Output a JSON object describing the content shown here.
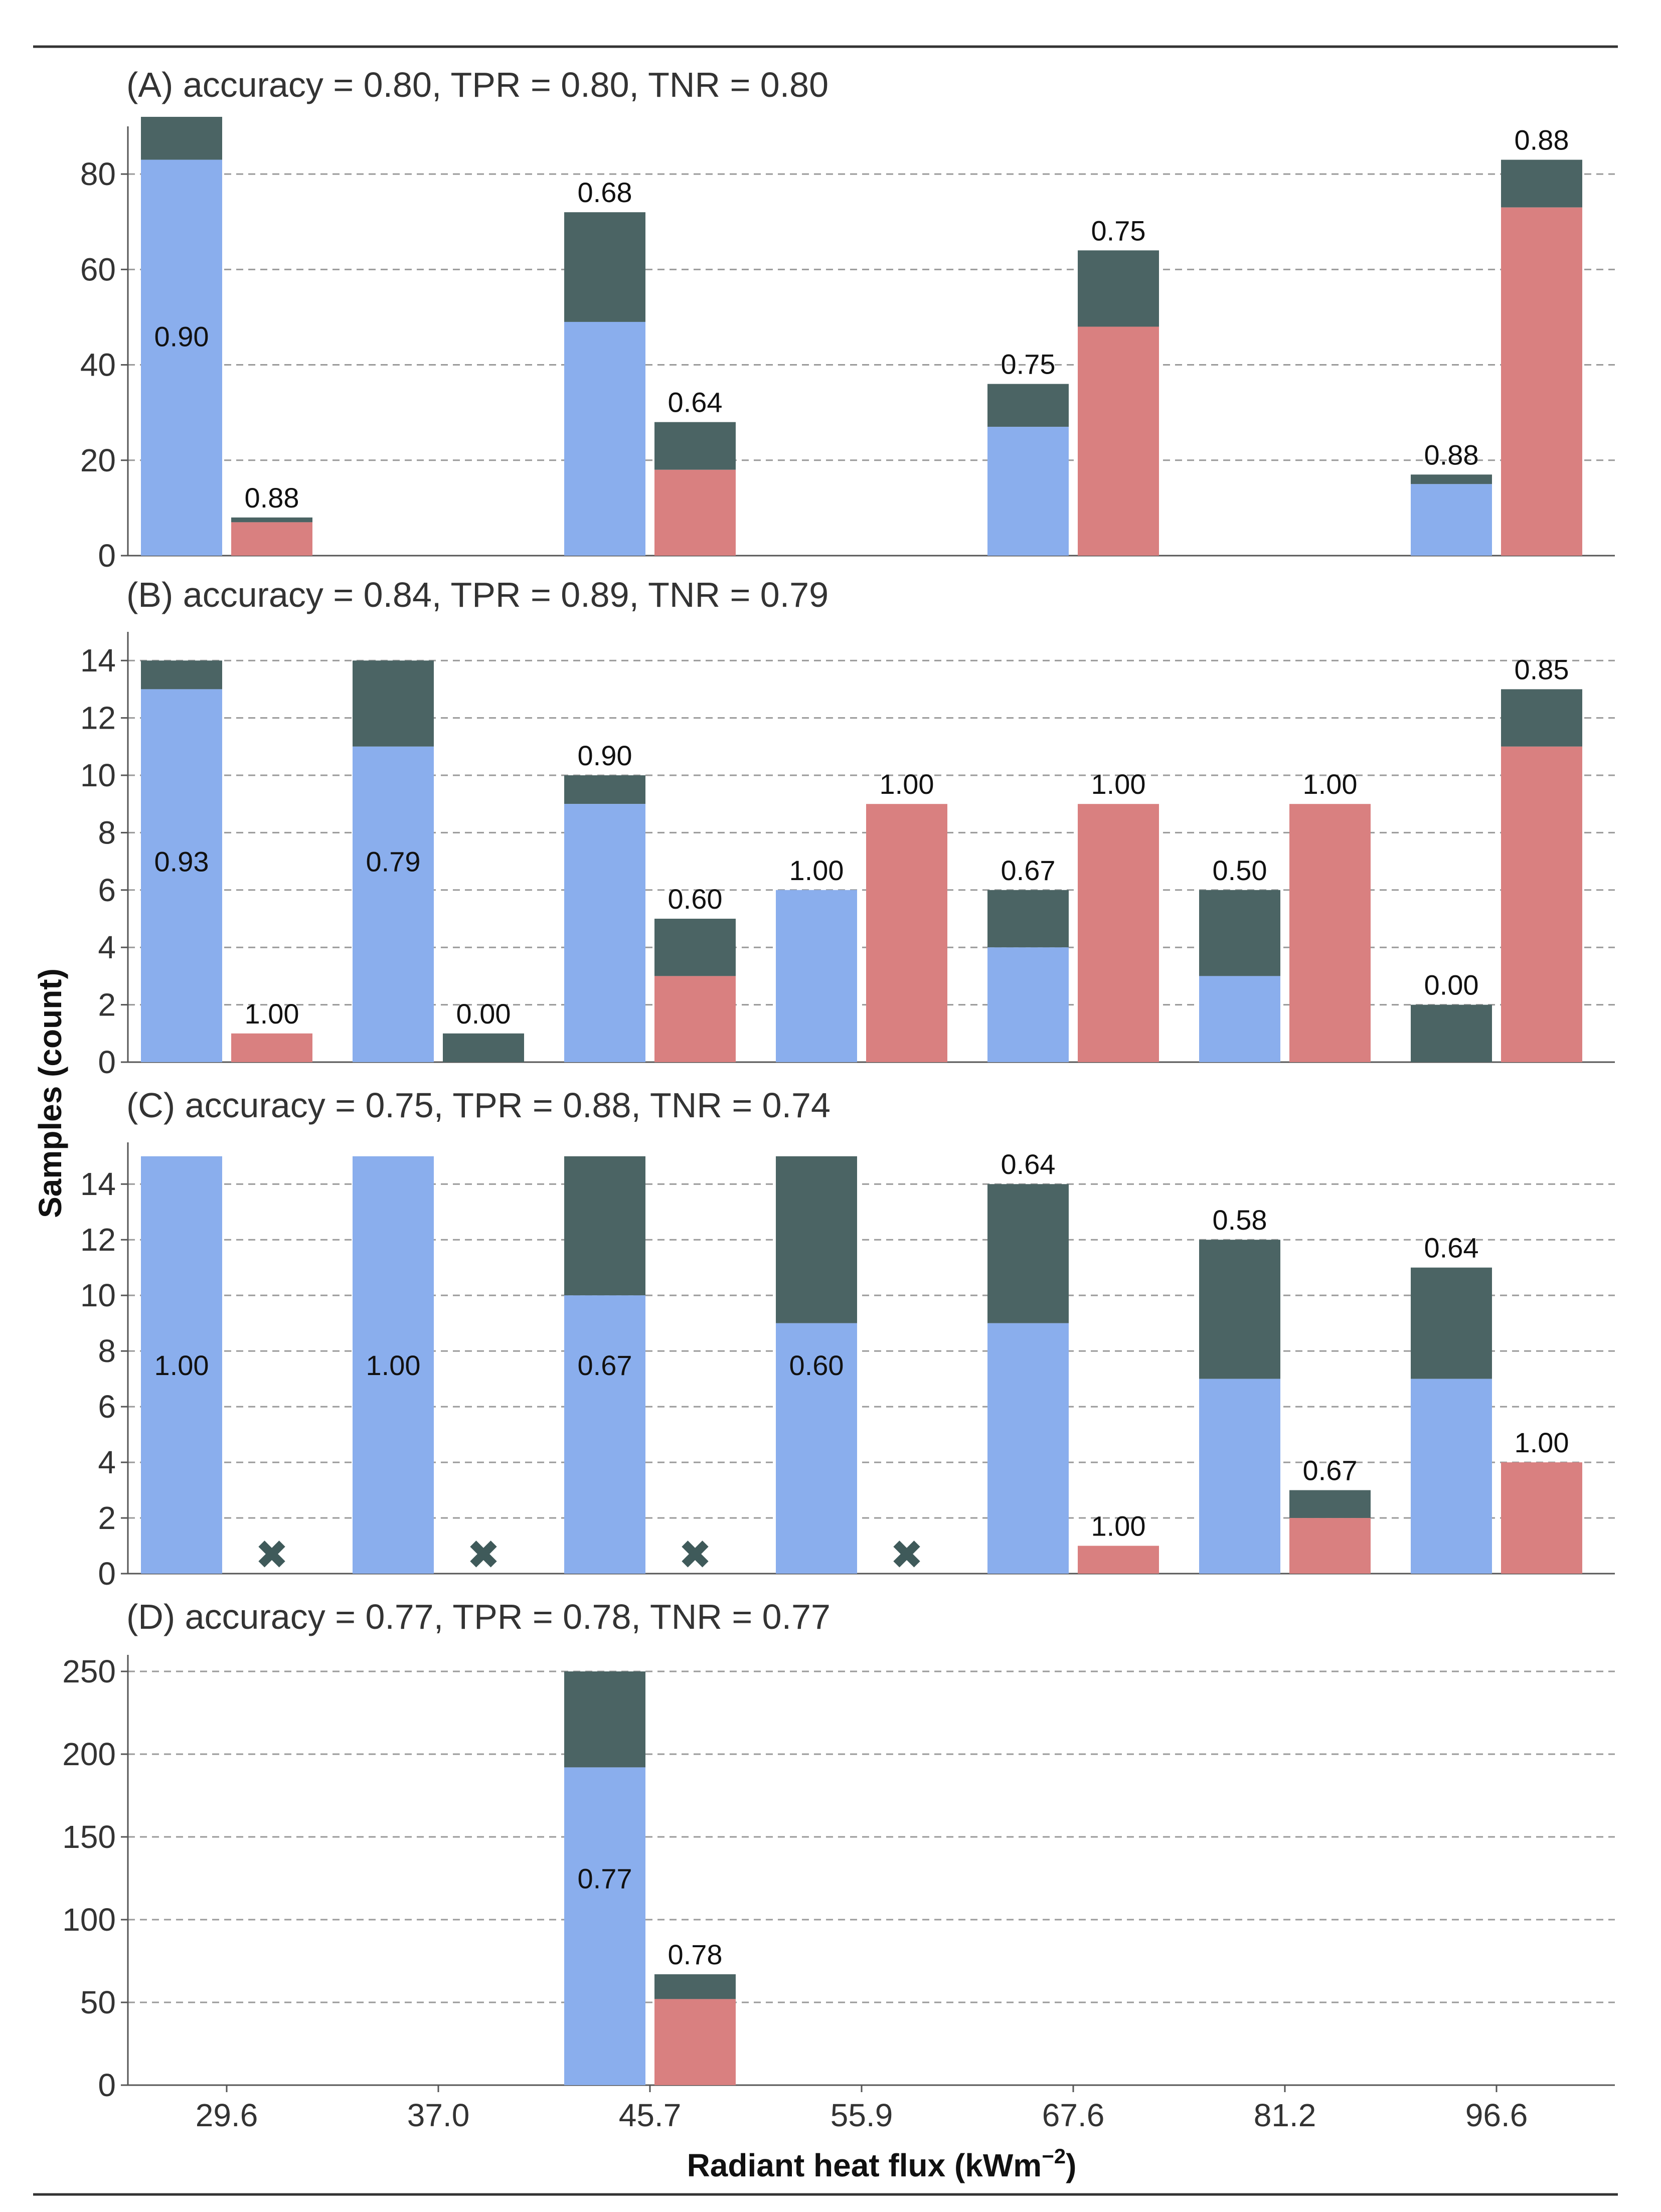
{
  "chart_data": {
    "type": "bar",
    "stacked_grouped": true,
    "colors": {
      "negative": "#8aaeed",
      "positive": "#d98080",
      "misclassified": "#4b6464",
      "marker": "#3f5a5a"
    },
    "ylabel": "Samples (count)",
    "xlabel": "Radiant heat flux (kWm",
    "xlabel_sup": "−2",
    "xlabel_close": ")",
    "categories": [
      "29.6",
      "37.0",
      "45.7",
      "55.9",
      "67.6",
      "81.2",
      "96.6"
    ],
    "missing_marker": "✖",
    "panels": [
      {
        "title": "(A) accuracy = 0.80, TPR = 0.80, TNR = 0.80",
        "ylim": [
          0,
          90
        ],
        "yticks": [
          0,
          20,
          40,
          60,
          80
        ],
        "bars": [
          {
            "category": "29.6",
            "class": "negative",
            "correct": 83,
            "total": 92,
            "label": "0.90",
            "label_pos": "inside"
          },
          {
            "category": "29.6",
            "class": "positive",
            "correct": 7,
            "total": 8,
            "label": "0.88",
            "label_pos": "above"
          },
          {
            "category": "45.7",
            "class": "negative",
            "correct": 49,
            "total": 72,
            "label": "0.68",
            "label_pos": "above"
          },
          {
            "category": "45.7",
            "class": "positive",
            "correct": 18,
            "total": 28,
            "label": "0.64",
            "label_pos": "above"
          },
          {
            "category": "67.6",
            "class": "negative",
            "correct": 27,
            "total": 36,
            "label": "0.75",
            "label_pos": "above"
          },
          {
            "category": "67.6",
            "class": "positive",
            "correct": 48,
            "total": 64,
            "label": "0.75",
            "label_pos": "above"
          },
          {
            "category": "96.6",
            "class": "negative",
            "correct": 15,
            "total": 17,
            "label": "0.88",
            "label_pos": "above"
          },
          {
            "category": "96.6",
            "class": "positive",
            "correct": 73,
            "total": 83,
            "label": "0.88",
            "label_pos": "above"
          }
        ],
        "missing": []
      },
      {
        "title": "(B) accuracy = 0.84, TPR = 0.89, TNR = 0.79",
        "ylim": [
          0,
          15
        ],
        "yticks": [
          0,
          2,
          4,
          6,
          8,
          10,
          12,
          14
        ],
        "bars": [
          {
            "category": "29.6",
            "class": "negative",
            "correct": 13,
            "total": 14,
            "label": "0.93",
            "label_pos": "inside"
          },
          {
            "category": "29.6",
            "class": "positive",
            "correct": 1,
            "total": 1,
            "label": "1.00",
            "label_pos": "above"
          },
          {
            "category": "37.0",
            "class": "negative",
            "correct": 11,
            "total": 14,
            "label": "0.79",
            "label_pos": "inside"
          },
          {
            "category": "37.0",
            "class": "positive",
            "correct": 0,
            "total": 1,
            "label": "0.00",
            "label_pos": "above"
          },
          {
            "category": "45.7",
            "class": "negative",
            "correct": 9,
            "total": 10,
            "label": "0.90",
            "label_pos": "above"
          },
          {
            "category": "45.7",
            "class": "positive",
            "correct": 3,
            "total": 5,
            "label": "0.60",
            "label_pos": "above"
          },
          {
            "category": "55.9",
            "class": "negative",
            "correct": 6,
            "total": 6,
            "label": "1.00",
            "label_pos": "above"
          },
          {
            "category": "55.9",
            "class": "positive",
            "correct": 9,
            "total": 9,
            "label": "1.00",
            "label_pos": "above"
          },
          {
            "category": "67.6",
            "class": "negative",
            "correct": 4,
            "total": 6,
            "label": "0.67",
            "label_pos": "above"
          },
          {
            "category": "67.6",
            "class": "positive",
            "correct": 9,
            "total": 9,
            "label": "1.00",
            "label_pos": "above"
          },
          {
            "category": "81.2",
            "class": "negative",
            "correct": 3,
            "total": 6,
            "label": "0.50",
            "label_pos": "above"
          },
          {
            "category": "81.2",
            "class": "positive",
            "correct": 9,
            "total": 9,
            "label": "1.00",
            "label_pos": "above"
          },
          {
            "category": "96.6",
            "class": "negative",
            "correct": 0,
            "total": 2,
            "label": "0.00",
            "label_pos": "above"
          },
          {
            "category": "96.6",
            "class": "positive",
            "correct": 11,
            "total": 13,
            "label": "0.85",
            "label_pos": "above"
          }
        ],
        "missing": []
      },
      {
        "title": "(C) accuracy = 0.75, TPR = 0.88, TNR = 0.74",
        "ylim": [
          0,
          15.5
        ],
        "yticks": [
          0,
          2,
          4,
          6,
          8,
          10,
          12,
          14
        ],
        "bars": [
          {
            "category": "29.6",
            "class": "negative",
            "correct": 15,
            "total": 15,
            "label": "1.00",
            "label_pos": "inside"
          },
          {
            "category": "37.0",
            "class": "negative",
            "correct": 15,
            "total": 15,
            "label": "1.00",
            "label_pos": "inside"
          },
          {
            "category": "45.7",
            "class": "negative",
            "correct": 10,
            "total": 15,
            "label": "0.67",
            "label_pos": "inside"
          },
          {
            "category": "55.9",
            "class": "negative",
            "correct": 9,
            "total": 15,
            "label": "0.60",
            "label_pos": "inside"
          },
          {
            "category": "67.6",
            "class": "negative",
            "correct": 9,
            "total": 14,
            "label": "0.64",
            "label_pos": "above"
          },
          {
            "category": "67.6",
            "class": "positive",
            "correct": 1,
            "total": 1,
            "label": "1.00",
            "label_pos": "above"
          },
          {
            "category": "81.2",
            "class": "negative",
            "correct": 7,
            "total": 12,
            "label": "0.58",
            "label_pos": "above"
          },
          {
            "category": "81.2",
            "class": "positive",
            "correct": 2,
            "total": 3,
            "label": "0.67",
            "label_pos": "above"
          },
          {
            "category": "96.6",
            "class": "negative",
            "correct": 7,
            "total": 11,
            "label": "0.64",
            "label_pos": "above"
          },
          {
            "category": "96.6",
            "class": "positive",
            "correct": 4,
            "total": 4,
            "label": "1.00",
            "label_pos": "above"
          }
        ],
        "missing": [
          {
            "category": "29.6",
            "class": "positive"
          },
          {
            "category": "37.0",
            "class": "positive"
          },
          {
            "category": "45.7",
            "class": "positive"
          },
          {
            "category": "55.9",
            "class": "positive"
          }
        ]
      },
      {
        "title": "(D) accuracy = 0.77, TPR = 0.78, TNR = 0.77",
        "ylim": [
          0,
          260
        ],
        "yticks": [
          0,
          50,
          100,
          150,
          200,
          250
        ],
        "bars": [
          {
            "category": "45.7",
            "class": "negative",
            "correct": 192,
            "total": 250,
            "label": "0.77",
            "label_pos": "inside"
          },
          {
            "category": "45.7",
            "class": "positive",
            "correct": 52,
            "total": 67,
            "label": "0.78",
            "label_pos": "above"
          }
        ],
        "missing": []
      }
    ]
  }
}
